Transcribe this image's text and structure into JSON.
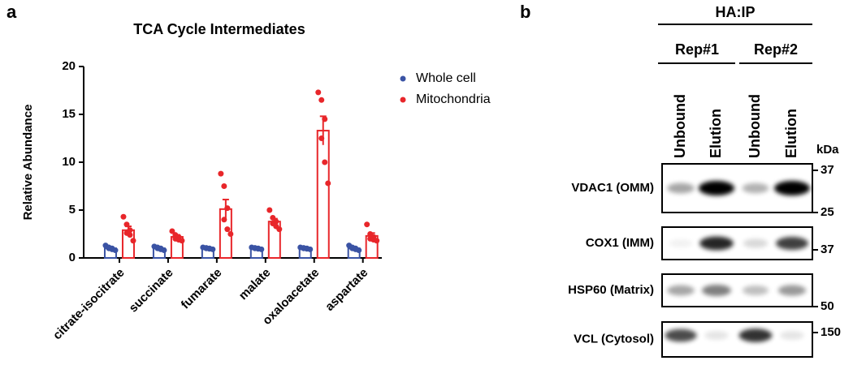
{
  "chart_data": {
    "type": "bar",
    "panel": "a",
    "title": "TCA Cycle Intermediates",
    "y_label": "Relative Abundance",
    "categories": [
      "citrate-isocitrate",
      "succinate",
      "fumarate",
      "malate",
      "oxaloacetate",
      "aspartate"
    ],
    "series": [
      {
        "name": "Whole cell",
        "color": "#3a53a4",
        "values": [
          1.0,
          1.0,
          1.0,
          1.0,
          1.0,
          1.0
        ],
        "errors": [
          0.1,
          0.1,
          0.05,
          0.05,
          0.05,
          0.1
        ],
        "points": [
          [
            1.3,
            1.1,
            1.0,
            1.0,
            0.9,
            0.8
          ],
          [
            1.2,
            1.1,
            1.0,
            1.0,
            0.9,
            0.8
          ],
          [
            1.1,
            1.05,
            1.0,
            1.0,
            0.95,
            0.9
          ],
          [
            1.1,
            1.05,
            1.0,
            1.0,
            0.95,
            0.9
          ],
          [
            1.1,
            1.05,
            1.0,
            1.0,
            0.95,
            0.9
          ],
          [
            1.3,
            1.1,
            1.0,
            1.0,
            0.9,
            0.8
          ]
        ]
      },
      {
        "name": "Mitochondria",
        "color": "#e8262a",
        "values": [
          2.9,
          2.2,
          5.1,
          3.8,
          13.3,
          2.3
        ],
        "errors": [
          0.4,
          0.2,
          1.0,
          0.3,
          1.5,
          0.3
        ],
        "points": [
          [
            4.3,
            3.5,
            2.9,
            2.6,
            2.4,
            1.8
          ],
          [
            2.8,
            2.4,
            2.2,
            2.0,
            1.9,
            1.8
          ],
          [
            8.8,
            7.5,
            5.2,
            4.0,
            3.0,
            2.5
          ],
          [
            5.0,
            4.2,
            3.8,
            3.6,
            3.3,
            3.0
          ],
          [
            17.3,
            16.5,
            14.5,
            12.5,
            10.0,
            7.8
          ],
          [
            3.5,
            2.5,
            2.2,
            2.0,
            1.9,
            1.8
          ]
        ]
      }
    ],
    "ylim": [
      0,
      20
    ],
    "yticks": [
      0,
      5,
      10,
      15,
      20
    ]
  },
  "panel_b": {
    "panel": "b",
    "header": "HA:IP",
    "replicates": [
      "Rep#1",
      "Rep#2"
    ],
    "lanes": [
      "Unbound",
      "Elution",
      "Unbound",
      "Elution"
    ],
    "unit": "kDa",
    "rows": [
      {
        "label": "VDAC1 (OMM)",
        "markers": [
          "37",
          "25"
        ]
      },
      {
        "label": "COX1 (IMM)",
        "markers": [
          "37"
        ]
      },
      {
        "label": "HSP60 (Matrix)",
        "markers": [
          "50"
        ]
      },
      {
        "label": "VCL (Cytosol)",
        "markers": [
          "150"
        ]
      }
    ]
  }
}
